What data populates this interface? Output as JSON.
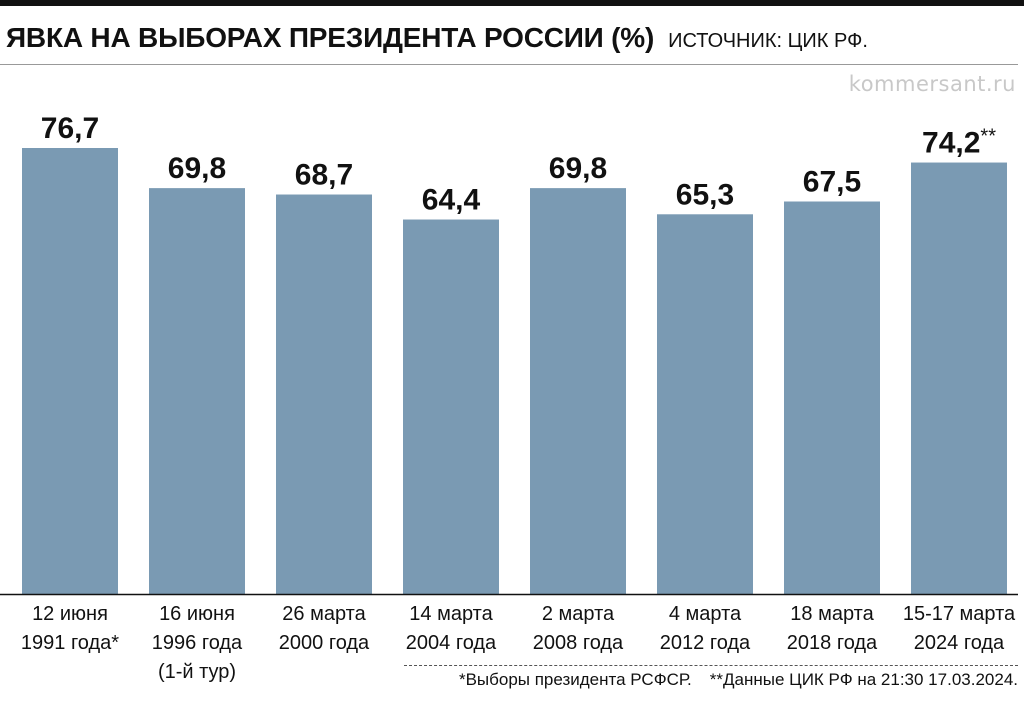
{
  "header": {
    "title": "ЯВКА НА ВЫБОРАХ ПРЕЗИДЕНТА РОССИИ (%)",
    "source": "ИСТОЧНИК: ЦИК РФ."
  },
  "watermark": "kommersant.ru",
  "footnotes": {
    "note1": "*Выборы президента РСФСР.",
    "note2": "**Данные ЦИК РФ на 21:30 17.03.2024."
  },
  "colors": {
    "bar": "#7a9ab3",
    "text": "#111111",
    "axis": "#111111"
  },
  "chart_data": {
    "type": "bar",
    "title": "ЯВКА НА ВЫБОРАХ ПРЕЗИДЕНТА РОССИИ (%)",
    "xlabel": "",
    "ylabel": "",
    "ylim": [
      0,
      76.7
    ],
    "grid": false,
    "categories": [
      [
        "12 июня",
        "1991 года*"
      ],
      [
        "16 июня",
        "1996 года",
        "(1-й тур)"
      ],
      [
        "26 марта",
        "2000 года"
      ],
      [
        "14 марта",
        "2004 года"
      ],
      [
        "2 марта",
        "2008 года"
      ],
      [
        "4 марта",
        "2012 года"
      ],
      [
        "18 марта",
        "2018 года"
      ],
      [
        "15-17 марта",
        "2024 года"
      ]
    ],
    "values": [
      76.7,
      69.8,
      68.7,
      64.4,
      69.8,
      65.3,
      67.5,
      74.2
    ],
    "value_labels": [
      "76,7",
      "69,8",
      "68,7",
      "64,4",
      "69,8",
      "65,3",
      "67,5",
      "74,2"
    ],
    "value_notes": [
      "",
      "",
      "",
      "",
      "",
      "",
      "",
      "**"
    ]
  }
}
